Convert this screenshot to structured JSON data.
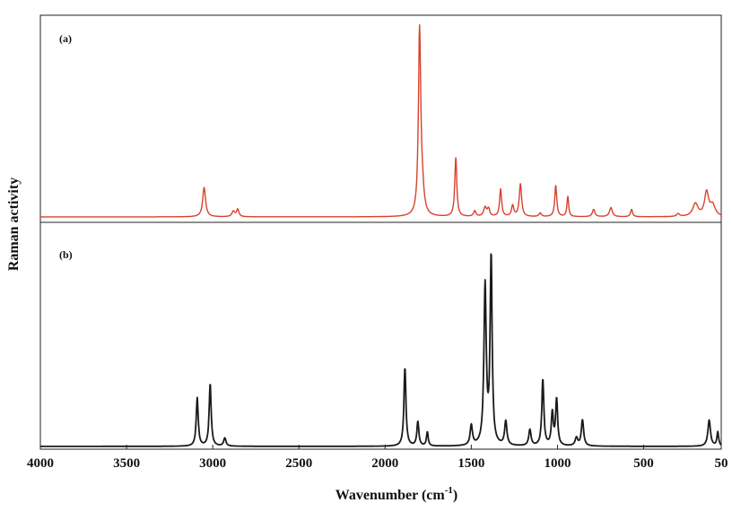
{
  "chart_data": {
    "type": "line",
    "xlabel": "Wavenumber (cm",
    "xlabel_sup": "-1",
    "xlabel_close": ")",
    "ylabel": "Raman activity",
    "xlim": [
      4000,
      50
    ],
    "x_ticks": [
      4000,
      3500,
      3000,
      2500,
      2000,
      1500,
      1000,
      500,
      50
    ],
    "grid": false,
    "panels": [
      {
        "label": "(a)",
        "color": "#d9412b",
        "ylim": [
          0,
          1.1
        ],
        "baseline": 0.02,
        "peaks": [
          [
            3050,
            0.16,
            10
          ],
          [
            2880,
            0.03,
            10
          ],
          [
            2855,
            0.04,
            8
          ],
          [
            1800,
            1.0,
            8
          ],
          [
            1785,
            0.12,
            12
          ],
          [
            1590,
            0.32,
            7
          ],
          [
            1480,
            0.03,
            8
          ],
          [
            1420,
            0.05,
            10
          ],
          [
            1400,
            0.04,
            8
          ],
          [
            1330,
            0.15,
            7
          ],
          [
            1260,
            0.06,
            8
          ],
          [
            1215,
            0.18,
            8
          ],
          [
            1100,
            0.02,
            8
          ],
          [
            1010,
            0.17,
            7
          ],
          [
            940,
            0.11,
            6
          ],
          [
            790,
            0.04,
            9
          ],
          [
            690,
            0.05,
            10
          ],
          [
            570,
            0.04,
            7
          ],
          [
            300,
            0.015,
            10
          ],
          [
            200,
            0.07,
            18
          ],
          [
            135,
            0.13,
            14
          ],
          [
            100,
            0.06,
            18
          ]
        ]
      },
      {
        "label": "(b)",
        "color": "#1a1a1a",
        "ylim": [
          0,
          1.1
        ],
        "baseline": 0.005,
        "peaks": [
          [
            3090,
            0.24,
            7
          ],
          [
            3015,
            0.31,
            7
          ],
          [
            2930,
            0.04,
            8
          ],
          [
            1885,
            0.39,
            7
          ],
          [
            1810,
            0.12,
            7
          ],
          [
            1755,
            0.07,
            6
          ],
          [
            1500,
            0.1,
            8
          ],
          [
            1420,
            0.79,
            8
          ],
          [
            1385,
            0.93,
            7
          ],
          [
            1300,
            0.12,
            8
          ],
          [
            1160,
            0.08,
            8
          ],
          [
            1085,
            0.33,
            7
          ],
          [
            1030,
            0.16,
            7
          ],
          [
            1005,
            0.23,
            7
          ],
          [
            890,
            0.04,
            9
          ],
          [
            855,
            0.13,
            8
          ],
          [
            120,
            0.13,
            9
          ],
          [
            70,
            0.07,
            6
          ]
        ]
      }
    ]
  }
}
